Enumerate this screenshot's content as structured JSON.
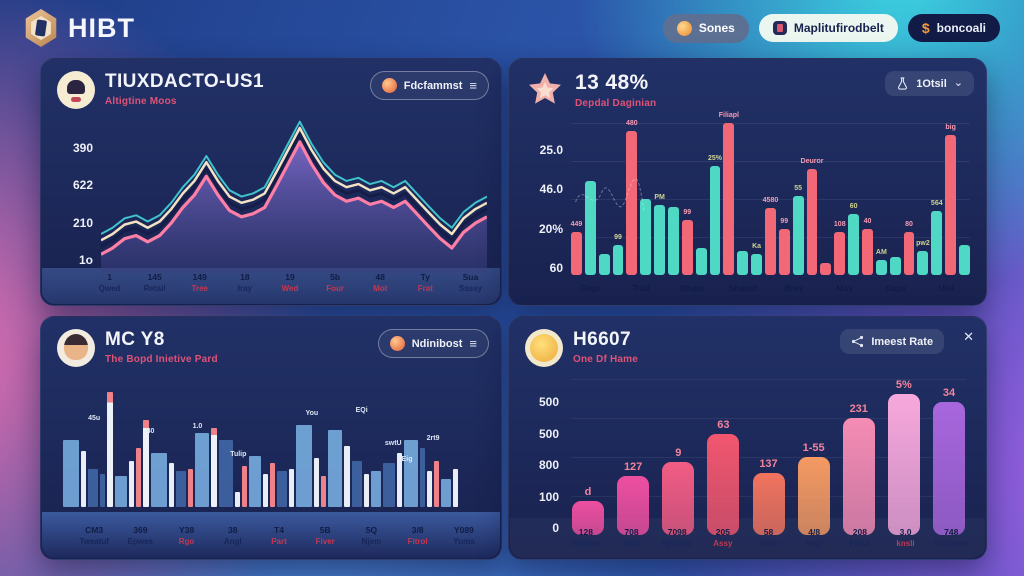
{
  "header": {
    "logo_text": "HIBT",
    "actions": [
      {
        "label": "Sones",
        "icon": "coin-icon"
      },
      {
        "label": "Maplitufirodbelt",
        "icon": "app-icon"
      },
      {
        "label": "boncoali",
        "icon": "dollar-icon"
      }
    ]
  },
  "panels": {
    "p1": {
      "title": "TIUXDACTO-US1",
      "subtitle": "Altigtine Moos",
      "action_label": "Fdcfammst"
    },
    "p2": {
      "title": "13 48%",
      "subtitle": "Depdal Daginian",
      "action_label": "1Otsil"
    },
    "p3": {
      "title": "MC Y8",
      "subtitle": "The Bopd Inietive Pard",
      "action_label": "Ndinibost"
    },
    "p4": {
      "title": "H6607",
      "subtitle": "One Df Hame",
      "action_label": "Imeest Rate"
    }
  },
  "colors": {
    "teal_bar": "#4fd8c4",
    "red_bar": "#f26876",
    "pink_line": "#ff7fa6",
    "navy_line": "#151d48",
    "cream_line": "#f3e3c3",
    "teal_line": "#3fc3cd",
    "subtitle_pink": "#df5377",
    "panel_bg": "#1d2a5c",
    "cyan_glow": "#3cd6e2"
  },
  "chart_data": [
    {
      "type": "line",
      "title": "TIUXDACTO-US1",
      "y_ticks": [
        "390",
        "622",
        "210",
        "1o"
      ],
      "x_categories": [
        [
          "1",
          "Qwed",
          0
        ],
        [
          "145",
          "Retail",
          0
        ],
        [
          "149",
          "Tree",
          1
        ],
        [
          "18",
          "Iray",
          0
        ],
        [
          "19",
          "Wed",
          1
        ],
        [
          "5b",
          "Four",
          1
        ],
        [
          "48",
          "Mot",
          1
        ],
        [
          "Ty",
          "Frat",
          1
        ],
        [
          "Sua",
          "Sassy",
          0
        ]
      ],
      "values": [
        12,
        16,
        22,
        24,
        20,
        24,
        32,
        42,
        50,
        62,
        50,
        40,
        36,
        38,
        42,
        56,
        70,
        84,
        70,
        58,
        50,
        46,
        48,
        44,
        46,
        42,
        46,
        38,
        30,
        22,
        16,
        26,
        32,
        36
      ],
      "series_offsets": {
        "navy": 5,
        "cream": 9,
        "teal": 13
      },
      "legend": "none",
      "grid": "off"
    },
    {
      "type": "bar",
      "title": "13 48%",
      "y_ticks": [
        "25.0",
        "46.0",
        "20%",
        "60"
      ],
      "x_categories": [
        "Gege",
        "Trial",
        "Oham",
        "Shaust",
        "Brey",
        "May",
        "Kage",
        "Ub4"
      ],
      "bars": [
        {
          "v": 28,
          "c": "r",
          "l": "449"
        },
        {
          "v": 62,
          "c": "t"
        },
        {
          "v": 14,
          "c": "t"
        },
        {
          "v": 20,
          "c": "t",
          "l": "99"
        },
        {
          "v": 95,
          "c": "r",
          "l": "480"
        },
        {
          "v": 50,
          "c": "t"
        },
        {
          "v": 46,
          "c": "t",
          "l": "PM"
        },
        {
          "v": 45,
          "c": "t"
        },
        {
          "v": 36,
          "c": "r",
          "l": "99"
        },
        {
          "v": 18,
          "c": "t"
        },
        {
          "v": 72,
          "c": "t",
          "l": "25%"
        },
        {
          "v": 100,
          "c": "r",
          "l": "Filiapl"
        },
        {
          "v": 16,
          "c": "t"
        },
        {
          "v": 14,
          "c": "t",
          "l": "Ka"
        },
        {
          "v": 44,
          "c": "r",
          "l": "4580"
        },
        {
          "v": 30,
          "c": "r",
          "l": "99"
        },
        {
          "v": 52,
          "c": "t",
          "l": "55"
        },
        {
          "v": 70,
          "c": "r",
          "l": "Deuror"
        },
        {
          "v": 8,
          "c": "r"
        },
        {
          "v": 28,
          "c": "r",
          "l": "108"
        },
        {
          "v": 40,
          "c": "t",
          "l": "60"
        },
        {
          "v": 30,
          "c": "r",
          "l": "40"
        },
        {
          "v": 10,
          "c": "t",
          "l": "AM"
        },
        {
          "v": 12,
          "c": "t"
        },
        {
          "v": 28,
          "c": "r",
          "l": "80"
        },
        {
          "v": 16,
          "c": "t",
          "l": "pw2"
        },
        {
          "v": 42,
          "c": "t",
          "l": "564"
        },
        {
          "v": 92,
          "c": "r",
          "l": "big"
        },
        {
          "v": 20,
          "c": "t"
        }
      ],
      "grid": "on"
    },
    {
      "type": "bar",
      "title": "MC Y8",
      "x_categories": [
        [
          "CM3",
          "Tweatuf",
          0
        ],
        [
          "369",
          "Epwes",
          0
        ],
        [
          "Y38",
          "Rgo",
          1
        ],
        [
          "38",
          "Angl",
          0
        ],
        [
          "T4",
          "Part",
          1
        ],
        [
          "5B",
          "Fiver",
          1
        ],
        [
          "5Q",
          "Njem",
          0
        ],
        [
          "3/8",
          "Fitrol",
          1
        ],
        [
          "Y089",
          "Yuma",
          0
        ]
      ],
      "bars": [
        {
          "w": 16,
          "v": 52,
          "c": "B"
        },
        {
          "w": 5,
          "v": 44,
          "c": "W"
        },
        {
          "w": 10,
          "v": 30,
          "c": "D"
        },
        {
          "w": 5,
          "v": 26,
          "c": "D"
        },
        {
          "w": 6,
          "v": 90,
          "c": "T"
        },
        {
          "w": 12,
          "v": 24,
          "c": "B"
        },
        {
          "w": 5,
          "v": 36,
          "c": "W"
        },
        {
          "w": 5,
          "v": 46,
          "c": "R"
        },
        {
          "w": 6,
          "v": 68,
          "c": "T"
        },
        {
          "w": 16,
          "v": 42,
          "c": "B"
        },
        {
          "w": 5,
          "v": 34,
          "c": "W"
        },
        {
          "w": 10,
          "v": 28,
          "c": "D"
        },
        {
          "w": 5,
          "v": 30,
          "c": "R"
        },
        {
          "w": 14,
          "v": 58,
          "c": "B"
        },
        {
          "w": 6,
          "v": 62,
          "c": "T"
        },
        {
          "w": 14,
          "v": 52,
          "c": "D"
        },
        {
          "w": 5,
          "v": 12,
          "c": "W"
        },
        {
          "w": 5,
          "v": 32,
          "c": "R"
        },
        {
          "w": 12,
          "v": 40,
          "c": "B"
        },
        {
          "w": 5,
          "v": 26,
          "c": "W"
        },
        {
          "w": 5,
          "v": 34,
          "c": "R"
        },
        {
          "w": 10,
          "v": 28,
          "c": "D"
        },
        {
          "w": 5,
          "v": 30,
          "c": "W"
        },
        {
          "w": 16,
          "v": 64,
          "c": "B"
        },
        {
          "w": 5,
          "v": 38,
          "c": "W"
        },
        {
          "w": 5,
          "v": 24,
          "c": "R"
        },
        {
          "w": 14,
          "v": 60,
          "c": "B"
        },
        {
          "w": 6,
          "v": 48,
          "c": "W"
        },
        {
          "w": 10,
          "v": 36,
          "c": "D"
        },
        {
          "w": 5,
          "v": 26,
          "c": "W"
        },
        {
          "w": 10,
          "v": 28,
          "c": "B"
        },
        {
          "w": 12,
          "v": 34,
          "c": "D"
        },
        {
          "w": 5,
          "v": 42,
          "c": "W"
        },
        {
          "w": 14,
          "v": 52,
          "c": "B"
        },
        {
          "w": 5,
          "v": 46,
          "c": "D"
        },
        {
          "w": 5,
          "v": 28,
          "c": "W"
        },
        {
          "w": 5,
          "v": 36,
          "c": "R"
        },
        {
          "w": 10,
          "v": 22,
          "c": "B"
        },
        {
          "w": 5,
          "v": 30,
          "c": "W"
        }
      ],
      "annotations": [
        {
          "t": "45u",
          "x": 6,
          "y": 28
        },
        {
          "t": "40",
          "x": 20,
          "y": 38
        },
        {
          "t": "1.0",
          "x": 31,
          "y": 34
        },
        {
          "t": "Tulip",
          "x": 40,
          "y": 56
        },
        {
          "t": "You",
          "x": 58,
          "y": 24
        },
        {
          "t": "EQi",
          "x": 70,
          "y": 22
        },
        {
          "t": "swtU",
          "x": 77,
          "y": 48
        },
        {
          "t": "Eig",
          "x": 81,
          "y": 60
        },
        {
          "t": "2rt9",
          "x": 87,
          "y": 44
        }
      ],
      "grid": "off"
    },
    {
      "type": "bar",
      "title": "H6607",
      "y_ticks": [
        "500",
        "500",
        "800",
        "100",
        "0"
      ],
      "x_categories": [
        [
          "128",
          "Rijonas",
          0
        ],
        [
          "708",
          "Insu",
          0
        ],
        [
          "7098",
          "Rjscims",
          0
        ],
        [
          "205",
          "Assy",
          1
        ],
        [
          "58",
          "RAw",
          0
        ],
        [
          "4/8",
          "Imgl",
          0
        ],
        [
          "208",
          "Fraur",
          0
        ],
        [
          "3.0",
          "knsli",
          1
        ],
        [
          "748",
          "Locusne",
          0
        ]
      ],
      "values": [
        22,
        38,
        47,
        65,
        40,
        50,
        75,
        97,
        85
      ],
      "labels": [
        "d",
        "127",
        "9",
        "63",
        "137",
        "1-55",
        "231",
        "5%",
        "34"
      ],
      "bar_colors": [
        "#ee4fa0",
        "#ee4fa0",
        "#f25c84",
        "#f2566e",
        "#f2745e",
        "#f59a62",
        "#f58cb4",
        "#f7a8dc",
        "#a866dd"
      ],
      "grid": "on"
    }
  ]
}
